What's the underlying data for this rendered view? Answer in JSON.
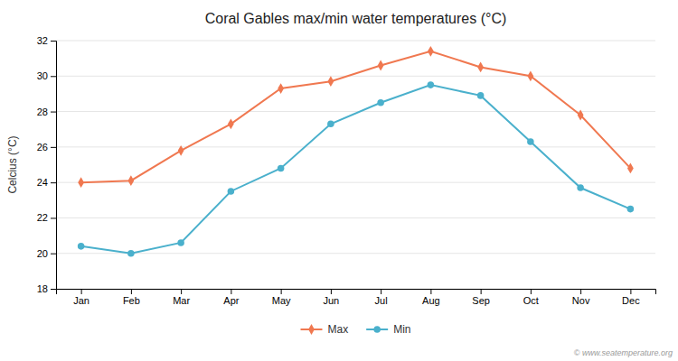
{
  "chart_data": {
    "type": "line",
    "title": "Coral Gables max/min water temperatures (°C)",
    "y_label": "Celcius (°C)",
    "categories": [
      "Jan",
      "Feb",
      "Mar",
      "Apr",
      "May",
      "Jun",
      "Jul",
      "Aug",
      "Sep",
      "Oct",
      "Nov",
      "Dec"
    ],
    "series": [
      {
        "name": "Max",
        "color": "#f07850",
        "marker": "diamond",
        "values": [
          24.0,
          24.1,
          25.8,
          27.3,
          29.3,
          29.7,
          30.6,
          31.4,
          30.5,
          30.0,
          27.8,
          24.8
        ]
      },
      {
        "name": "Min",
        "color": "#4ab0cc",
        "marker": "circle",
        "values": [
          20.4,
          20.0,
          20.6,
          23.5,
          24.8,
          27.3,
          28.5,
          29.5,
          28.9,
          26.3,
          23.7,
          22.5
        ]
      }
    ],
    "ylim": [
      18,
      32
    ],
    "yticks": [
      18,
      20,
      22,
      24,
      26,
      28,
      30,
      32
    ],
    "grid": true,
    "legend": "bottom",
    "annotations": [
      "© www.seatemperature.org"
    ]
  }
}
